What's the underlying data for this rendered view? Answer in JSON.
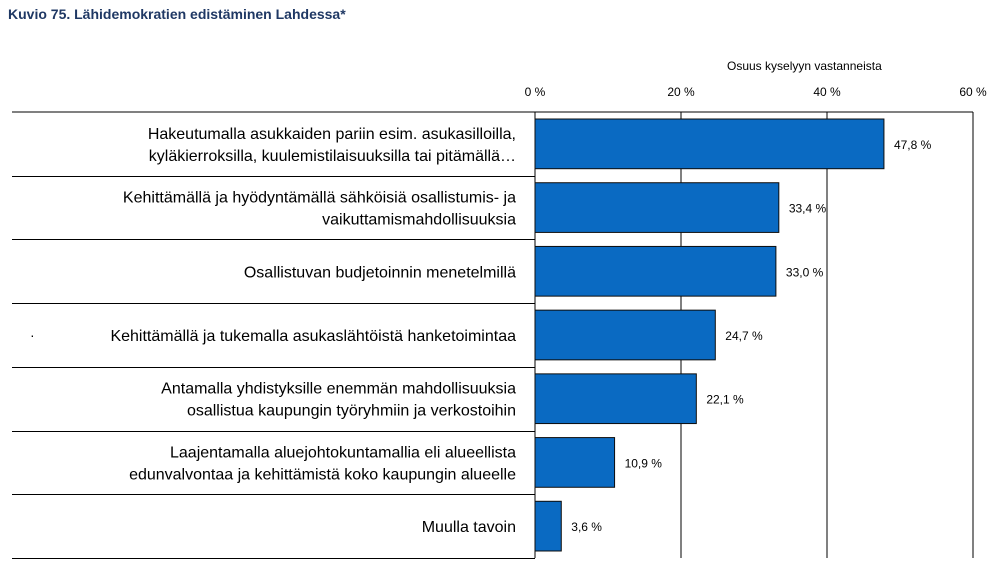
{
  "chart_data": {
    "type": "bar",
    "orientation": "horizontal",
    "title": "Kuvio 75. Lähidemokratien edistäminen Lahdessa*",
    "axis_title": "Osuus kyselyyn vastanneista",
    "xlim": [
      0,
      60
    ],
    "xticks": [
      0,
      20,
      40,
      60
    ],
    "xtick_labels": [
      "0 %",
      "20 %",
      "40 %",
      "60 %"
    ],
    "grid": true,
    "axis_position": "top",
    "bar_color": "#0a6ac2",
    "bar_outline": "#0d0d0d",
    "categories": [
      [
        "Hakeutumalla asukkaiden pariin esim. asukasilloilla,",
        "kyläkierroksilla, kuulemistilaisuuksilla tai pitämällä…"
      ],
      [
        "Kehittämällä ja hyödyntämällä sähköisiä osallistumis- ja",
        "vaikuttamismahdollisuuksia"
      ],
      [
        "Osallistuvan budjetoinnin menetelmillä"
      ],
      [
        "Kehittämällä ja tukemalla asukaslähtöistä hanketoimintaa"
      ],
      [
        "Antamalla yhdistyksille enemmän mahdollisuuksia",
        "osallistua kaupungin työryhmiin ja verkostoihin"
      ],
      [
        "Laajentamalla aluejohtokuntamallia eli alueellista",
        "edunvalvontaa ja kehittämistä koko kaupungin alueelle"
      ],
      [
        "Muulla tavoin"
      ]
    ],
    "values": [
      47.8,
      33.4,
      33.0,
      24.7,
      22.1,
      10.9,
      3.6
    ],
    "value_labels": [
      "47,8 %",
      "33,4 %",
      "33,0 %",
      "24,7 %",
      "22,1 %",
      "10,9 %",
      "3,6 %"
    ],
    "stray_mark": "·"
  }
}
